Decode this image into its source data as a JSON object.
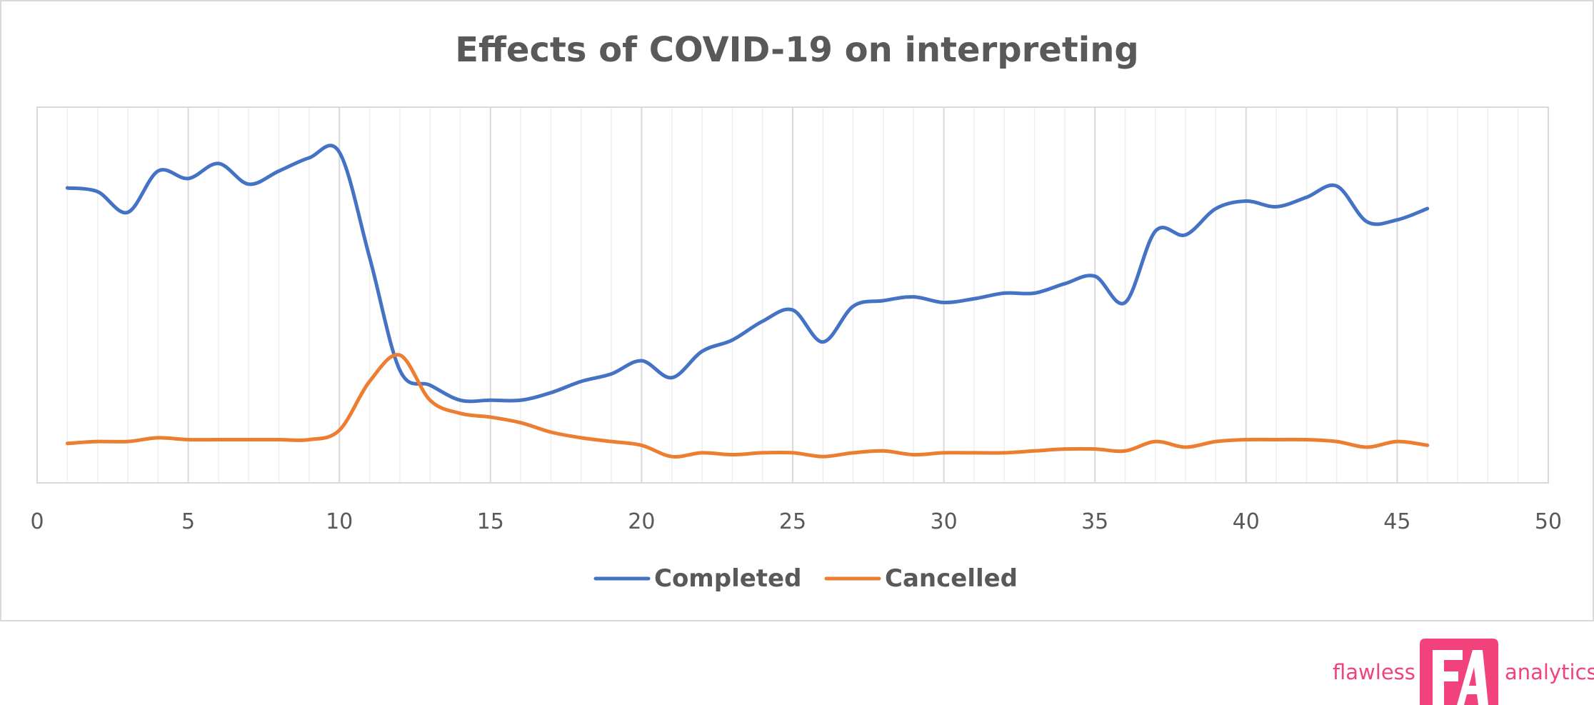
{
  "chart_data": {
    "type": "line",
    "title": "Effects of COVID-19 on interpreting",
    "xlabel": "",
    "ylabel": "",
    "xlim": [
      0,
      50
    ],
    "x_ticks": [
      0,
      5,
      10,
      15,
      20,
      25,
      30,
      35,
      40,
      45,
      50
    ],
    "y_tick_labels_shown": false,
    "ylim": [
      0,
      100
    ],
    "grid": {
      "vertical_major": true,
      "vertical_minor": true,
      "horizontal": false
    },
    "legend": {
      "position": "bottom",
      "entries": [
        "Completed",
        "Cancelled"
      ]
    },
    "x": [
      1,
      2,
      3,
      4,
      5,
      6,
      7,
      8,
      9,
      10,
      11,
      12,
      13,
      14,
      15,
      16,
      17,
      18,
      19,
      20,
      21,
      22,
      23,
      24,
      25,
      26,
      27,
      28,
      29,
      30,
      31,
      32,
      33,
      34,
      35,
      36,
      37,
      38,
      39,
      40,
      41,
      42,
      43,
      44,
      45,
      46
    ],
    "series": [
      {
        "name": "Completed",
        "color": "#4472c4",
        "values": [
          78.5,
          77.5,
          72,
          83,
          81,
          85,
          79.5,
          83,
          86.5,
          88,
          60,
          30,
          26,
          22,
          22,
          22,
          24,
          27,
          29,
          32.5,
          28,
          35,
          38,
          43,
          46,
          37.5,
          47,
          48.5,
          49.5,
          48,
          49,
          50.5,
          50.5,
          53,
          55,
          48,
          67,
          66,
          73,
          75,
          73.5,
          76,
          79,
          69.5,
          70,
          73
        ]
      },
      {
        "name": "Cancelled",
        "color": "#ed7d31",
        "values": [
          10.5,
          11,
          11,
          12,
          11.5,
          11.5,
          11.5,
          11.5,
          11.5,
          14,
          27,
          34,
          22,
          18.5,
          17.5,
          16,
          13.5,
          12,
          11,
          10,
          7,
          8,
          7.5,
          8,
          8,
          7,
          8,
          8.5,
          7.5,
          8,
          8,
          8,
          8.5,
          9,
          9,
          8.5,
          11,
          9.5,
          11,
          11.5,
          11.5,
          11.5,
          11,
          9.5,
          11,
          10
        ]
      }
    ]
  },
  "brand": {
    "left_word": "flawless",
    "right_word": "analytics",
    "logo_letters": "FA",
    "color": "#f2427c"
  }
}
